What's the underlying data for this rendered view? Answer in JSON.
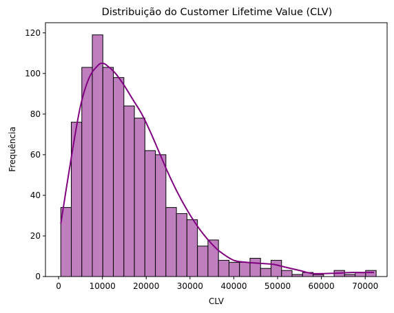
{
  "chart_data": {
    "type": "bar",
    "title": "Distribuição do Customer Lifetime Value (CLV)",
    "xlabel": "CLV",
    "ylabel": "Frequência",
    "xlim": [
      -3000,
      75000
    ],
    "ylim": [
      0,
      125
    ],
    "xticks": [
      0,
      10000,
      20000,
      30000,
      40000,
      50000,
      60000,
      70000
    ],
    "yticks": [
      0,
      20,
      40,
      60,
      80,
      100,
      120
    ],
    "bins": {
      "start": 500,
      "width": 2400,
      "counts": [
        34,
        76,
        103,
        119,
        103,
        98,
        84,
        78,
        62,
        60,
        34,
        31,
        28,
        15,
        18,
        8,
        7,
        7,
        9,
        4,
        8,
        3,
        1,
        2,
        1,
        0,
        3,
        1,
        2,
        3
      ]
    },
    "kde": {
      "x": [
        500,
        3000,
        5000,
        7000,
        9000,
        10000,
        11000,
        13000,
        15000,
        17000,
        19000,
        21000,
        23000,
        25000,
        27000,
        29000,
        31000,
        33000,
        35000,
        37000,
        40000,
        43000,
        46000,
        49000,
        52000,
        55000,
        58000,
        61000,
        64000,
        67000,
        70000,
        72000
      ],
      "y": [
        26,
        60,
        84,
        98,
        104,
        105,
        104,
        100,
        94,
        87,
        80,
        71,
        61,
        51,
        42,
        34,
        27,
        21,
        16,
        12,
        8,
        7,
        6.5,
        6,
        4.5,
        3,
        1.5,
        1.5,
        1.7,
        2,
        2,
        2
      ]
    },
    "colors": {
      "bar_fill": "#bf7fbf",
      "bar_edge": "#000000",
      "kde_line": "#800080"
    },
    "grid": false
  }
}
